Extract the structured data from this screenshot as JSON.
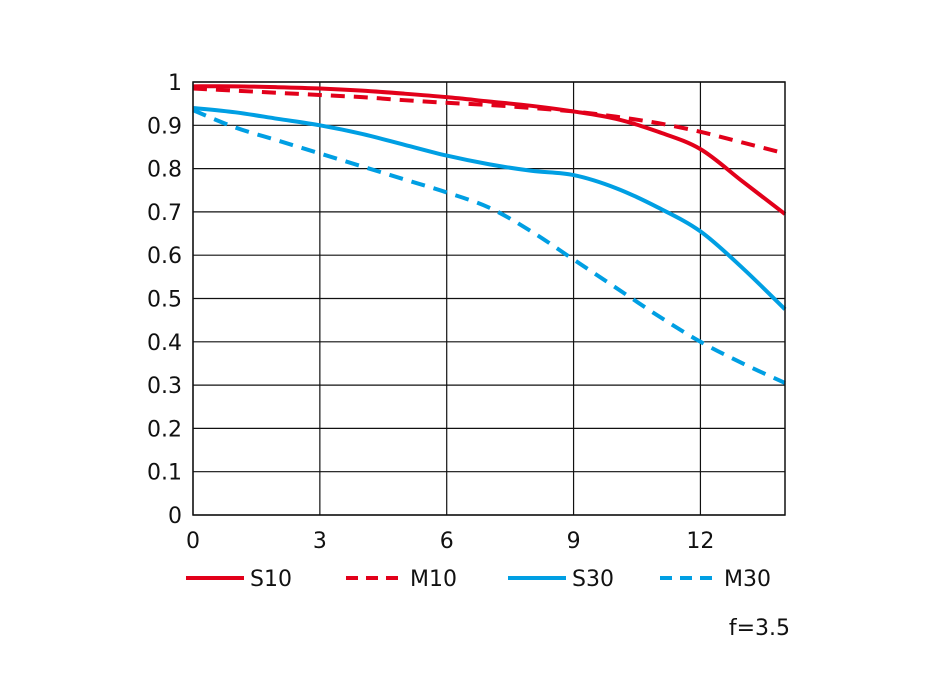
{
  "chart_data": {
    "type": "line",
    "title": "",
    "xlabel": "",
    "ylabel": "",
    "xlim": [
      0,
      14
    ],
    "ylim": [
      0,
      1
    ],
    "x_ticks": [
      "0",
      "3",
      "6",
      "9",
      "12"
    ],
    "x_tick_values": [
      0,
      3,
      6,
      9,
      12
    ],
    "y_ticks": [
      "0",
      "0.1",
      "0.2",
      "0.3",
      "0.4",
      "0.5",
      "0.6",
      "0.7",
      "0.8",
      "0.9",
      "1"
    ],
    "y_tick_values": [
      0,
      0.1,
      0.2,
      0.3,
      0.4,
      0.5,
      0.6,
      0.7,
      0.8,
      0.9,
      1
    ],
    "grid": true,
    "legend_position": "bottom",
    "note": "f=3.5",
    "series": [
      {
        "name": "S10",
        "color": "#e2001a",
        "dash": "solid",
        "x": [
          0,
          1,
          2,
          3,
          4,
          5,
          6,
          7,
          8,
          9,
          10,
          11,
          12,
          13,
          14
        ],
        "y": [
          0.99,
          0.99,
          0.988,
          0.985,
          0.98,
          0.973,
          0.965,
          0.955,
          0.945,
          0.932,
          0.915,
          0.885,
          0.845,
          0.77,
          0.695
        ]
      },
      {
        "name": "M10",
        "color": "#e2001a",
        "dash": "dashed",
        "x": [
          0,
          1,
          2,
          3,
          4,
          5,
          6,
          7,
          8,
          9,
          10,
          11,
          12,
          13,
          14
        ],
        "y": [
          0.985,
          0.98,
          0.975,
          0.97,
          0.965,
          0.958,
          0.952,
          0.947,
          0.94,
          0.932,
          0.92,
          0.905,
          0.885,
          0.86,
          0.835
        ]
      },
      {
        "name": "S30",
        "color": "#009fe3",
        "dash": "solid",
        "x": [
          0,
          1,
          2,
          3,
          4,
          5,
          6,
          7,
          8,
          9,
          10,
          11,
          12,
          13,
          14
        ],
        "y": [
          0.94,
          0.93,
          0.915,
          0.9,
          0.88,
          0.855,
          0.83,
          0.81,
          0.795,
          0.785,
          0.755,
          0.71,
          0.655,
          0.57,
          0.475
        ]
      },
      {
        "name": "M30",
        "color": "#009fe3",
        "dash": "dashed",
        "x": [
          0,
          1,
          2,
          3,
          4,
          5,
          6,
          7,
          8,
          9,
          10,
          11,
          12,
          13,
          14
        ],
        "y": [
          0.935,
          0.895,
          0.865,
          0.835,
          0.805,
          0.775,
          0.745,
          0.71,
          0.655,
          0.59,
          0.525,
          0.46,
          0.4,
          0.35,
          0.305
        ]
      }
    ]
  }
}
